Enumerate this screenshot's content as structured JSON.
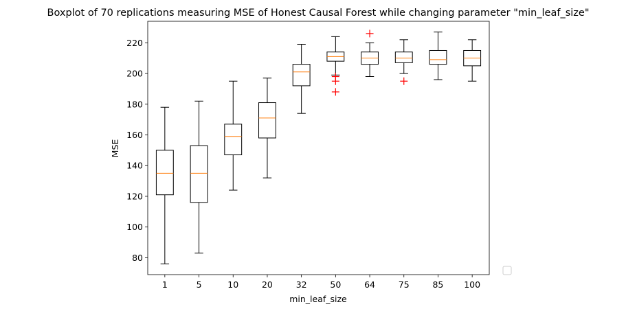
{
  "chart_data": {
    "type": "boxplot",
    "title": "Boxplot of 70 replications measuring MSE of Honest Causal Forest while changing parameter \"min_leaf_size\"",
    "xlabel": "min_leaf_size",
    "ylabel": "MSE",
    "ylim": [
      69,
      234
    ],
    "yticks": [
      80,
      100,
      120,
      140,
      160,
      180,
      200,
      220
    ],
    "categories": [
      "1",
      "5",
      "10",
      "20",
      "32",
      "50",
      "64",
      "75",
      "85",
      "100"
    ],
    "boxes": [
      {
        "whislo": 76,
        "q1": 121,
        "med": 135,
        "q3": 150,
        "whishi": 178,
        "fliers": []
      },
      {
        "whislo": 83,
        "q1": 116,
        "med": 135,
        "q3": 153,
        "whishi": 182,
        "fliers": []
      },
      {
        "whislo": 124,
        "q1": 147,
        "med": 159,
        "q3": 167,
        "whishi": 195,
        "fliers": []
      },
      {
        "whislo": 132,
        "q1": 158,
        "med": 171,
        "q3": 181,
        "whishi": 197,
        "fliers": []
      },
      {
        "whislo": 174,
        "q1": 192,
        "med": 201,
        "q3": 206,
        "whishi": 219,
        "fliers": []
      },
      {
        "whislo": 199,
        "q1": 208,
        "med": 211,
        "q3": 214,
        "whishi": 224,
        "fliers": [
          198,
          195,
          188
        ]
      },
      {
        "whislo": 198,
        "q1": 206,
        "med": 210,
        "q3": 214,
        "whishi": 220,
        "fliers": [
          226
        ]
      },
      {
        "whislo": 200,
        "q1": 207,
        "med": 210,
        "q3": 214,
        "whishi": 222,
        "fliers": [
          195
        ]
      },
      {
        "whislo": 196,
        "q1": 206,
        "med": 209,
        "q3": 215,
        "whishi": 227,
        "fliers": []
      },
      {
        "whislo": 195,
        "q1": 205,
        "med": 210,
        "q3": 215,
        "whishi": 222,
        "fliers": []
      }
    ],
    "colors": {
      "box": "#000000",
      "median": "#ff7f0e",
      "flier": "#ff0000"
    },
    "legend": {
      "position": "lower-right-outside",
      "entries": []
    },
    "grid": false
  }
}
